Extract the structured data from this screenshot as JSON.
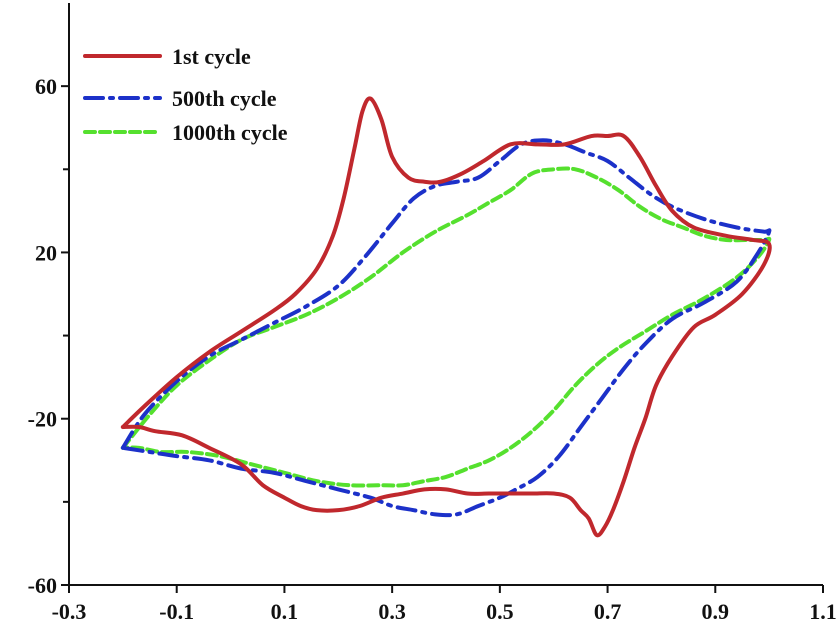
{
  "chart_data": {
    "type": "line",
    "title": "",
    "xlabel": "",
    "ylabel": "",
    "xlim": [
      -0.3,
      1.1
    ],
    "ylim": [
      -60,
      80
    ],
    "x_ticks": [
      -0.3,
      -0.1,
      0.1,
      0.3,
      0.5,
      0.7,
      0.9,
      1.1
    ],
    "x_tick_labels": [
      "-0.3",
      "-0.1",
      "0.1",
      "0.3",
      "0.5",
      "0.7",
      "0.9",
      "1.1"
    ],
    "y_ticks": [
      -60,
      -20,
      20,
      60
    ],
    "y_tick_labels": [
      "-60",
      "-20",
      "20",
      "60"
    ],
    "y_minor_ticks": [
      -40,
      0,
      40
    ],
    "grid": false,
    "legend_position": "top-left",
    "series": [
      {
        "name": "1st cycle",
        "color": "#c0282d",
        "style": "solid",
        "x": [
          -0.2,
          -0.16,
          -0.1,
          -0.04,
          0.02,
          0.08,
          0.12,
          0.16,
          0.19,
          0.21,
          0.23,
          0.245,
          0.26,
          0.28,
          0.3,
          0.33,
          0.36,
          0.39,
          0.43,
          0.47,
          0.52,
          0.57,
          0.62,
          0.67,
          0.7,
          0.73,
          0.76,
          0.79,
          0.82,
          0.86,
          0.92,
          0.97,
          1.0,
          0.99,
          0.95,
          0.9,
          0.86,
          0.82,
          0.79,
          0.77,
          0.75,
          0.73,
          0.71,
          0.695,
          0.68,
          0.665,
          0.65,
          0.63,
          0.6,
          0.56,
          0.52,
          0.48,
          0.44,
          0.4,
          0.36,
          0.32,
          0.28,
          0.24,
          0.2,
          0.16,
          0.13,
          0.1,
          0.06,
          0.02,
          -0.04,
          -0.09,
          -0.14,
          -0.17,
          -0.2
        ],
        "y": [
          -22,
          -17,
          -10,
          -4,
          1,
          6,
          10,
          16,
          24,
          33,
          45,
          54,
          57,
          52,
          43,
          38,
          37,
          37,
          39,
          42,
          46,
          46,
          46,
          48,
          48,
          48,
          43,
          36,
          30,
          26,
          24,
          23,
          22,
          17,
          10,
          5,
          2,
          -5,
          -12,
          -20,
          -27,
          -35,
          -42,
          -46,
          -48,
          -44,
          -42,
          -39,
          -38,
          -38,
          -38,
          -38,
          -38,
          -37,
          -37,
          -38,
          -39,
          -41,
          -42,
          -42,
          -41,
          -39,
          -36,
          -31,
          -27,
          -24,
          -23,
          -22,
          -22
        ]
      },
      {
        "name": "500th cycle",
        "color": "#1c31c9",
        "style": "dashdot",
        "x": [
          -0.2,
          -0.16,
          -0.1,
          -0.04,
          0.02,
          0.08,
          0.14,
          0.2,
          0.25,
          0.3,
          0.34,
          0.38,
          0.42,
          0.46,
          0.5,
          0.54,
          0.58,
          0.62,
          0.66,
          0.7,
          0.74,
          0.78,
          0.82,
          0.88,
          0.94,
          0.99,
          1.0,
          0.98,
          0.94,
          0.88,
          0.82,
          0.77,
          0.73,
          0.69,
          0.65,
          0.61,
          0.57,
          0.53,
          0.5,
          0.46,
          0.42,
          0.38,
          0.34,
          0.3,
          0.26,
          0.2,
          0.14,
          0.08,
          0.02,
          -0.04,
          -0.1,
          -0.15,
          -0.2
        ],
        "y": [
          -27,
          -19,
          -11,
          -5,
          -1,
          3,
          7,
          12,
          19,
          27,
          33,
          36,
          37,
          38,
          42,
          46,
          47,
          46,
          44,
          42,
          38,
          34,
          31,
          28,
          26,
          25,
          25,
          20,
          13,
          8,
          4,
          -2,
          -8,
          -15,
          -22,
          -29,
          -34,
          -37,
          -39,
          -41,
          -43,
          -43,
          -42,
          -41,
          -39,
          -37,
          -35,
          -33,
          -32,
          -30,
          -29,
          -28,
          -27
        ]
      },
      {
        "name": "1000th cycle",
        "color": "#55e02e",
        "style": "dashed",
        "x": [
          -0.2,
          -0.15,
          -0.1,
          -0.04,
          0.02,
          0.08,
          0.14,
          0.2,
          0.26,
          0.32,
          0.38,
          0.44,
          0.48,
          0.52,
          0.56,
          0.6,
          0.64,
          0.68,
          0.72,
          0.76,
          0.8,
          0.84,
          0.88,
          0.92,
          0.96,
          0.99,
          1.0,
          0.98,
          0.94,
          0.88,
          0.82,
          0.77,
          0.72,
          0.68,
          0.64,
          0.6,
          0.56,
          0.52,
          0.48,
          0.44,
          0.4,
          0.36,
          0.32,
          0.28,
          0.22,
          0.16,
          0.1,
          0.04,
          -0.02,
          -0.08,
          -0.13,
          -0.17,
          -0.2
        ],
        "y": [
          -27,
          -19,
          -12,
          -6,
          -1,
          2,
          5,
          9,
          14,
          20,
          25,
          29,
          32,
          35,
          39,
          40,
          40,
          38,
          35,
          31,
          28,
          26,
          24,
          23,
          23,
          23,
          23,
          19,
          14,
          9,
          5,
          1,
          -3,
          -7,
          -12,
          -18,
          -23,
          -27,
          -30,
          -32,
          -34,
          -35,
          -36,
          -36,
          -36,
          -35,
          -33,
          -31,
          -29,
          -28,
          -28,
          -27,
          -27
        ]
      }
    ]
  }
}
